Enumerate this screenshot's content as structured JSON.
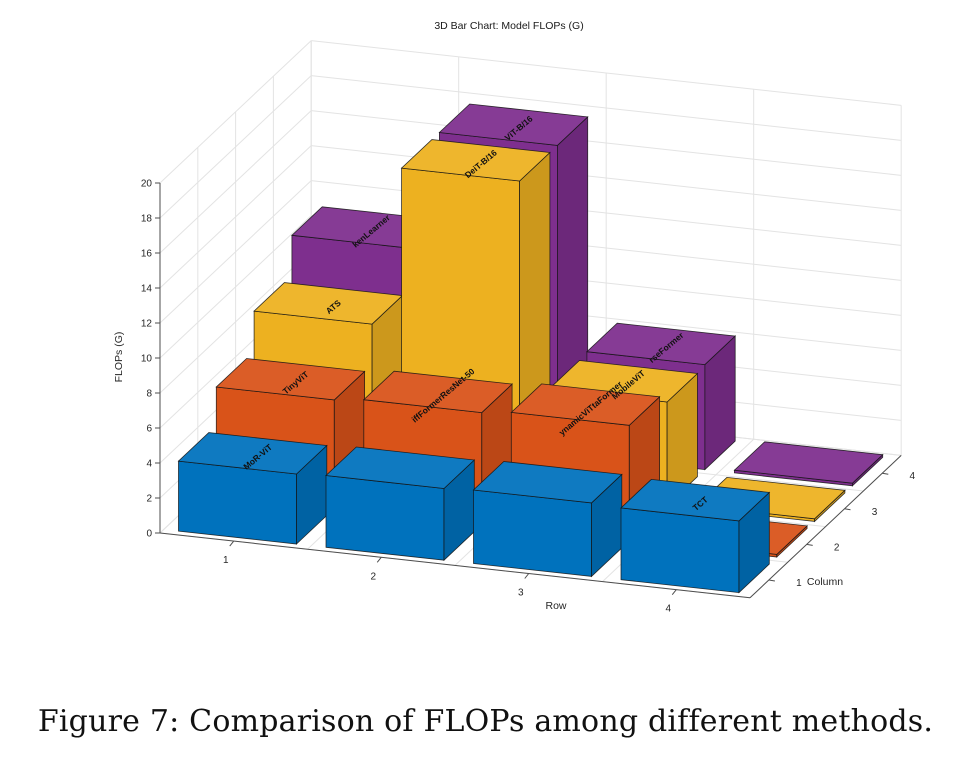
{
  "chart_data": {
    "type": "bar3d",
    "title": "3D Bar Chart: Model FLOPs (G)",
    "xlabel": "Row",
    "ylabel": "Column",
    "zlabel": "FLOPs (G)",
    "zlim": [
      0,
      20
    ],
    "zticks": [
      "0",
      "2",
      "4",
      "6",
      "8",
      "10",
      "12",
      "14",
      "16",
      "18",
      "20"
    ],
    "rows": [
      "1",
      "2",
      "3",
      "4"
    ],
    "columns": [
      "1",
      "2",
      "3",
      "4"
    ],
    "grid": true,
    "series": [
      {
        "name": "Column 1",
        "color": "#0072BD",
        "values": [
          4.0,
          4.1,
          4.2,
          4.1
        ],
        "labels": [
          "MoR-ViT",
          "",
          "",
          "TCT"
        ]
      },
      {
        "name": "Column 2",
        "color": "#D95319",
        "values": [
          6.2,
          6.4,
          6.6,
          0.15
        ],
        "labels": [
          "TinyViT",
          "iffFormerResNet-50",
          "ynamicViTtaFormer",
          ""
        ]
      },
      {
        "name": "Column 3",
        "color": "#EDB120",
        "values": [
          8.5,
          17.6,
          5.9,
          0.15
        ],
        "labels": [
          "ATS",
          "DeiT-B/16",
          "MobileViT",
          ""
        ]
      },
      {
        "name": "Column 4",
        "color": "#7E2F8E",
        "values": [
          10.8,
          17.6,
          6.0,
          0.15
        ],
        "labels": [
          "kenLearner",
          "ViT-B/16",
          "rseFormer",
          ""
        ]
      }
    ]
  },
  "caption": "Figure 7:  Comparison of FLOPs among different methods."
}
